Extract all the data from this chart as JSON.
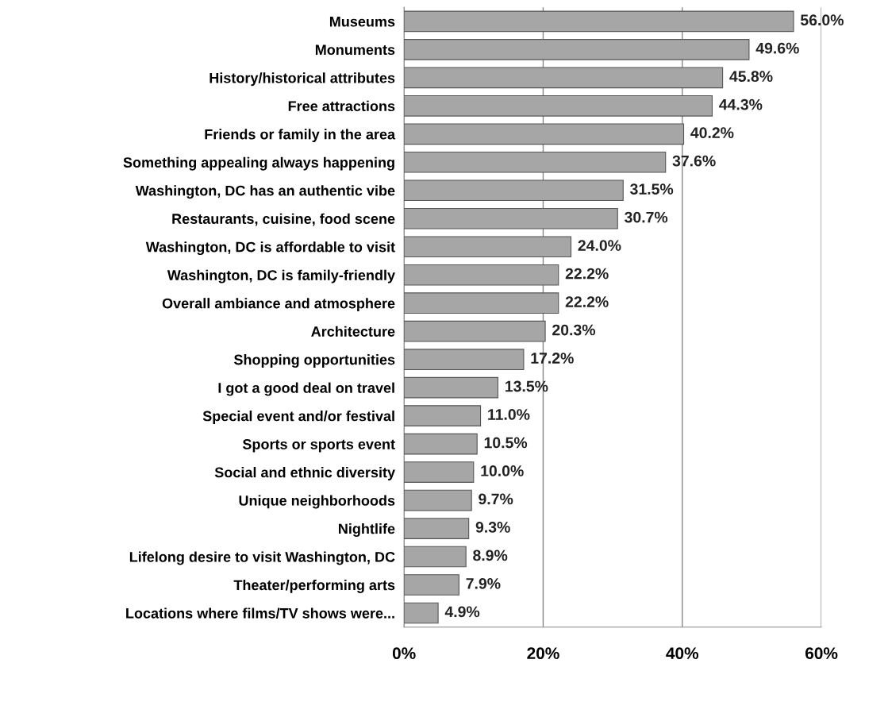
{
  "chart_data": {
    "type": "bar",
    "orientation": "horizontal",
    "categories": [
      "Museums",
      "Monuments",
      "History/historical attributes",
      "Free attractions",
      "Friends or family in the area",
      "Something appealing always happening",
      "Washington, DC has an authentic vibe",
      "Restaurants, cuisine, food scene",
      "Washington, DC is affordable to visit",
      "Washington, DC is family-friendly",
      "Overall ambiance and atmosphere",
      "Architecture",
      "Shopping opportunities",
      "I got a good deal on travel",
      "Special event and/or festival",
      "Sports or sports event",
      "Social and ethnic diversity",
      "Unique neighborhoods",
      "Nightlife",
      "Lifelong desire to visit Washington, DC",
      "Theater/performing arts",
      "Locations where films/TV shows were..."
    ],
    "values": [
      56.0,
      49.6,
      45.8,
      44.3,
      40.2,
      37.6,
      31.5,
      30.7,
      24.0,
      22.2,
      22.2,
      20.3,
      17.2,
      13.5,
      11.0,
      10.5,
      10.0,
      9.7,
      9.3,
      8.9,
      7.9,
      4.9
    ],
    "value_labels": [
      "56.0%",
      "49.6%",
      "45.8%",
      "44.3%",
      "40.2%",
      "37.6%",
      "31.5%",
      "30.7%",
      "24.0%",
      "22.2%",
      "22.2%",
      "20.3%",
      "17.2%",
      "13.5%",
      "11.0%",
      "10.5%",
      "10.0%",
      "9.7%",
      "9.3%",
      "8.9%",
      "7.9%",
      "4.9%"
    ],
    "color": "#a6a6a6",
    "xlim": [
      0,
      60
    ],
    "xticks": [
      {
        "value": 0,
        "label": "0%"
      },
      {
        "value": 20,
        "label": "20%"
      },
      {
        "value": 40,
        "label": "40%"
      },
      {
        "value": 60,
        "label": "60%"
      }
    ],
    "grid": "x",
    "legend": false
  }
}
